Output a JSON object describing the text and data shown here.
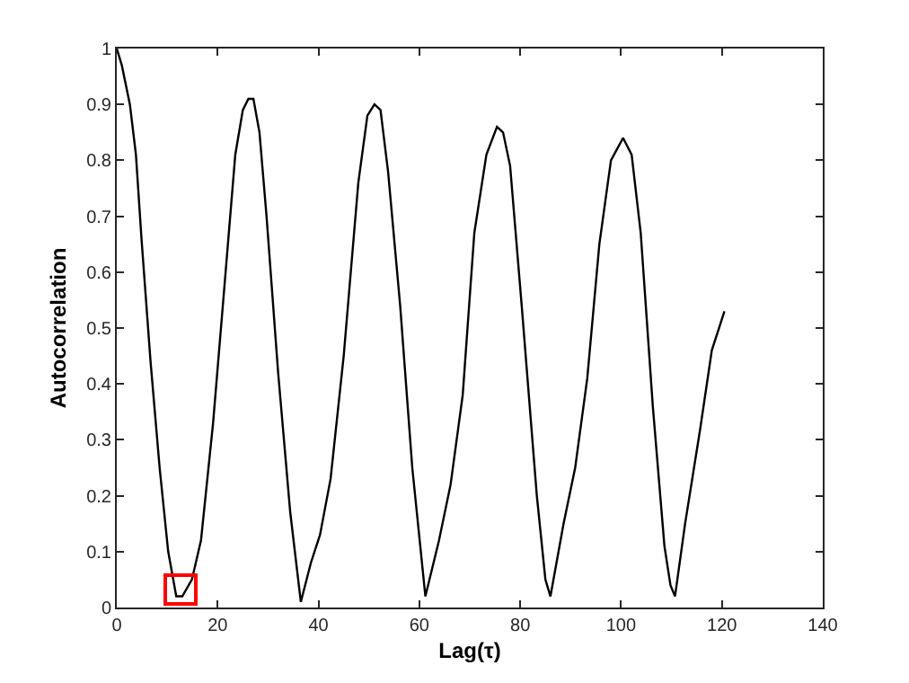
{
  "chart_data": {
    "type": "line",
    "xlabel": "Lag(τ)",
    "ylabel": "Autocorrelation",
    "series": [
      {
        "color": "#000000",
        "x": [
          0,
          1,
          2.6,
          3.8,
          4.9,
          6.7,
          8.5,
          10.2,
          11.8,
          13,
          14.9,
          16.7,
          19.1,
          21.4,
          23.5,
          25,
          26.1,
          27.1,
          28.3,
          29.7,
          32,
          34.4,
          36.5,
          38.5,
          40.3,
          42.4,
          45,
          47.9,
          49.7,
          51.1,
          52.3,
          53.8,
          56.2,
          58.6,
          61.2,
          63.9,
          66.2,
          68.6,
          70.9,
          73.3,
          75.4,
          76.6,
          78,
          80.3,
          83.3,
          85,
          86,
          88.6,
          90.9,
          93.3,
          95.7,
          98,
          100.4,
          102.1,
          103.9,
          106.3,
          108.6,
          109.8,
          110.7,
          112.7,
          115.7,
          118,
          120.5
        ],
        "values": [
          1,
          0.97,
          0.9,
          0.81,
          0.66,
          0.44,
          0.25,
          0.1,
          0.02,
          0.02,
          0.05,
          0.12,
          0.33,
          0.58,
          0.81,
          0.89,
          0.91,
          0.91,
          0.85,
          0.7,
          0.42,
          0.17,
          0.01,
          0.08,
          0.13,
          0.23,
          0.45,
          0.76,
          0.88,
          0.9,
          0.89,
          0.78,
          0.54,
          0.25,
          0.02,
          0.12,
          0.22,
          0.38,
          0.67,
          0.81,
          0.86,
          0.85,
          0.79,
          0.54,
          0.2,
          0.05,
          0.02,
          0.15,
          0.25,
          0.41,
          0.65,
          0.8,
          0.84,
          0.81,
          0.67,
          0.36,
          0.11,
          0.04,
          0.02,
          0.15,
          0.32,
          0.46,
          0.53
        ]
      }
    ],
    "xlim": [
      0,
      140
    ],
    "xticks": [
      0,
      20,
      40,
      60,
      80,
      100,
      120,
      140
    ],
    "ylim": [
      0,
      1
    ],
    "yticks": [
      0,
      0.1,
      0.2,
      0.3,
      0.4,
      0.5,
      0.6,
      0.7,
      0.8,
      0.9,
      1
    ],
    "line_style": "solid"
  }
}
